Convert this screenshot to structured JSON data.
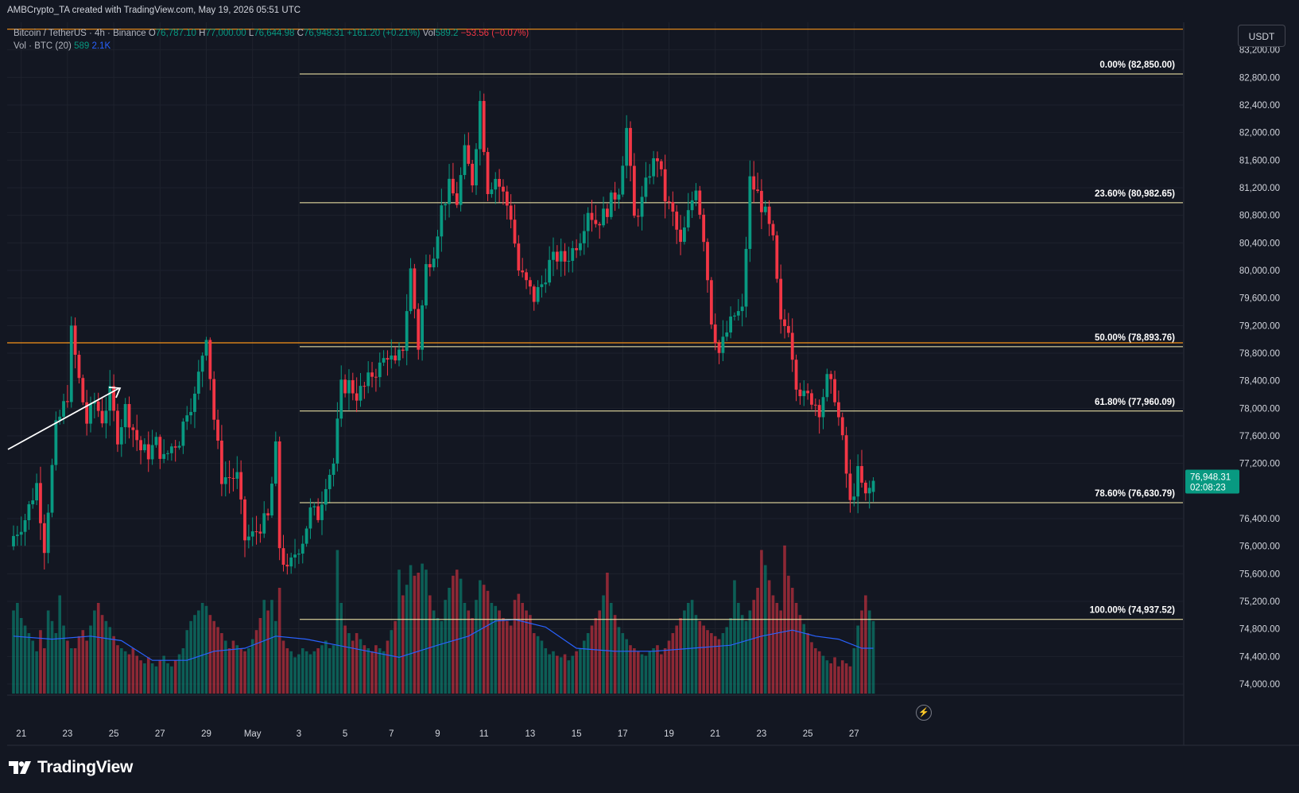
{
  "header": {
    "credit": "AMBCrypto_TA created with TradingView.com, May 19, 2026 05:51 UTC"
  },
  "legend": {
    "symbol": "Bitcoin / TetherUS · 4h · Binance",
    "o_label": "O",
    "o_value": "76,787.10",
    "h_label": "H",
    "h_value": "77,000.00",
    "l_label": "L",
    "l_value": "76,644.98",
    "c_label": "C",
    "c_value": "76,948.31",
    "change": "+161.20 (+0.21%)",
    "vol_label": "Vol",
    "vol_value": "589.2",
    "vol_change": "−53.56 (−0.07%)",
    "vol_indicator": "Vol · BTC (20)",
    "vol_current": "589",
    "vol_ma": "2.1K"
  },
  "currency_button": "USDT",
  "brand": "TradingView",
  "colors": {
    "background": "#131722",
    "up": "#089981",
    "down": "#f23645",
    "fib_line": "#fff3b0",
    "horizontal_line": "#f7931a",
    "volume_ma": "#2962ff",
    "axis_text": "#d1d4dc"
  },
  "chart_data": {
    "type": "candlestick",
    "symbol": "Bitcoin / TetherUS",
    "interval": "4h",
    "exchange": "Binance",
    "y_axis": {
      "ticks": [
        "83,200.00",
        "82,800.00",
        "82,400.00",
        "82,000.00",
        "81,600.00",
        "81,200.00",
        "80,800.00",
        "80,400.00",
        "80,000.00",
        "79,600.00",
        "79,200.00",
        "78,800.00",
        "78,400.00",
        "78,000.00",
        "77,600.00",
        "77,200.00",
        "76,400.00",
        "76,000.00",
        "75,600.00",
        "75,200.00",
        "74,800.00",
        "74,400.00",
        "74,000.00"
      ],
      "range": [
        73850,
        83600
      ]
    },
    "x_axis": {
      "ticks": [
        "21",
        "23",
        "25",
        "27",
        "29",
        "May",
        "3",
        "5",
        "7",
        "9",
        "11",
        "13",
        "15",
        "17",
        "19",
        "21",
        "23",
        "25",
        "27"
      ]
    },
    "last_price": {
      "value": "76,948.31",
      "countdown": "02:08:23"
    },
    "fib_levels": [
      {
        "label": "0.00% (82,850.00)",
        "price": 82850.0
      },
      {
        "label": "23.60% (80,982.65)",
        "price": 80982.65
      },
      {
        "label": "50.00% (78,893.76)",
        "price": 78893.76
      },
      {
        "label": "61.80% (77,960.09)",
        "price": 77960.09
      },
      {
        "label": "78.60% (76,630.79)",
        "price": 76630.79
      },
      {
        "label": "100.00% (74,937.52)",
        "price": 74937.52
      }
    ],
    "horizontal_lines": [
      83500,
      78950
    ],
    "candles": {
      "first_candle_date": "Apr 21",
      "close_path": [
        [
          0,
          76150
        ],
        [
          3,
          76400
        ],
        [
          6,
          76900
        ],
        [
          8,
          76000
        ],
        [
          11,
          77700
        ],
        [
          14,
          78200
        ],
        [
          15,
          79100
        ],
        [
          17,
          78400
        ],
        [
          19,
          77800
        ],
        [
          21,
          78100
        ],
        [
          23,
          77850
        ],
        [
          25,
          78200
        ],
        [
          27,
          77600
        ],
        [
          29,
          78000
        ],
        [
          31,
          77700
        ],
        [
          33,
          77400
        ],
        [
          35,
          77350
        ],
        [
          37,
          77500
        ],
        [
          39,
          77250
        ],
        [
          41,
          77450
        ],
        [
          43,
          77550
        ],
        [
          45,
          78000
        ],
        [
          47,
          78150
        ],
        [
          49,
          78800
        ],
        [
          50,
          79100
        ],
        [
          52,
          77850
        ],
        [
          54,
          77000
        ],
        [
          56,
          77000
        ],
        [
          58,
          77000
        ],
        [
          60,
          76100
        ],
        [
          62,
          76150
        ],
        [
          64,
          76300
        ],
        [
          66,
          76400
        ],
        [
          68,
          77400
        ],
        [
          69,
          76000
        ],
        [
          71,
          75600
        ],
        [
          73,
          75900
        ],
        [
          75,
          76100
        ],
        [
          77,
          76500
        ],
        [
          79,
          76450
        ],
        [
          81,
          76950
        ],
        [
          83,
          77200
        ],
        [
          85,
          78300
        ],
        [
          87,
          78350
        ],
        [
          89,
          78200
        ],
        [
          91,
          78300
        ],
        [
          93,
          78500
        ],
        [
          95,
          78600
        ],
        [
          97,
          78800
        ],
        [
          99,
          78600
        ],
        [
          101,
          78900
        ],
        [
          103,
          80000
        ],
        [
          105,
          78900
        ],
        [
          107,
          80050
        ],
        [
          109,
          80300
        ],
        [
          111,
          80900
        ],
        [
          113,
          81200
        ],
        [
          115,
          81000
        ],
        [
          117,
          81700
        ],
        [
          119,
          81300
        ],
        [
          121,
          82450
        ],
        [
          123,
          81200
        ],
        [
          125,
          81350
        ],
        [
          127,
          81100
        ],
        [
          129,
          80800
        ],
        [
          131,
          80000
        ],
        [
          133,
          79800
        ],
        [
          135,
          79600
        ],
        [
          137,
          79800
        ],
        [
          139,
          80100
        ],
        [
          141,
          80200
        ],
        [
          143,
          80150
        ],
        [
          145,
          80300
        ],
        [
          147,
          80500
        ],
        [
          149,
          80900
        ],
        [
          151,
          80700
        ],
        [
          153,
          80800
        ],
        [
          155,
          81000
        ],
        [
          157,
          81200
        ],
        [
          159,
          82050
        ],
        [
          161,
          80750
        ],
        [
          163,
          81000
        ],
        [
          165,
          81450
        ],
        [
          167,
          81650
        ],
        [
          169,
          81050
        ],
        [
          171,
          80800
        ],
        [
          173,
          80350
        ],
        [
          175,
          80800
        ],
        [
          177,
          81250
        ],
        [
          179,
          80500
        ],
        [
          181,
          79300
        ],
        [
          183,
          78800
        ],
        [
          185,
          79100
        ],
        [
          187,
          79350
        ],
        [
          189,
          79400
        ],
        [
          191,
          81300
        ],
        [
          193,
          81100
        ],
        [
          195,
          80800
        ],
        [
          197,
          80400
        ],
        [
          199,
          79200
        ],
        [
          201,
          79200
        ],
        [
          203,
          78400
        ],
        [
          205,
          78150
        ],
        [
          207,
          78150
        ],
        [
          209,
          78000
        ],
        [
          211,
          78400
        ],
        [
          213,
          78200
        ],
        [
          215,
          77500
        ],
        [
          217,
          76600
        ],
        [
          219,
          77050
        ],
        [
          221,
          76700
        ],
        [
          223,
          76950
        ]
      ]
    },
    "volume": {
      "ma_period": 20,
      "ma_path": [
        [
          0,
          0.38
        ],
        [
          10,
          0.36
        ],
        [
          20,
          0.38
        ],
        [
          28,
          0.35
        ],
        [
          36,
          0.22
        ],
        [
          45,
          0.22
        ],
        [
          52,
          0.28
        ],
        [
          60,
          0.3
        ],
        [
          68,
          0.38
        ],
        [
          76,
          0.36
        ],
        [
          84,
          0.32
        ],
        [
          92,
          0.28
        ],
        [
          100,
          0.24
        ],
        [
          110,
          0.32
        ],
        [
          118,
          0.38
        ],
        [
          125,
          0.48
        ],
        [
          130,
          0.49
        ],
        [
          138,
          0.44
        ],
        [
          146,
          0.3
        ],
        [
          156,
          0.28
        ],
        [
          166,
          0.28
        ],
        [
          176,
          0.3
        ],
        [
          186,
          0.32
        ],
        [
          194,
          0.38
        ],
        [
          202,
          0.42
        ],
        [
          208,
          0.38
        ],
        [
          214,
          0.36
        ],
        [
          220,
          0.3
        ],
        [
          223,
          0.3
        ]
      ],
      "heights": [
        0.55,
        0.6,
        0.5,
        0.45,
        0.4,
        0.35,
        0.28,
        0.42,
        0.3,
        0.55,
        0.48,
        0.4,
        0.65,
        0.45,
        0.35,
        0.3,
        0.3,
        0.38,
        0.42,
        0.35,
        0.45,
        0.55,
        0.6,
        0.52,
        0.48,
        0.44,
        0.38,
        0.32,
        0.3,
        0.28,
        0.26,
        0.3,
        0.25,
        0.22,
        0.2,
        0.24,
        0.2,
        0.18,
        0.22,
        0.25,
        0.2,
        0.18,
        0.22,
        0.26,
        0.3,
        0.42,
        0.48,
        0.52,
        0.55,
        0.6,
        0.58,
        0.52,
        0.48,
        0.44,
        0.4,
        0.35,
        0.3,
        0.35,
        0.32,
        0.3,
        0.28,
        0.3,
        0.36,
        0.42,
        0.5,
        0.62,
        0.55,
        0.62,
        0.48,
        0.7,
        0.35,
        0.3,
        0.28,
        0.24,
        0.26,
        0.3,
        0.28,
        0.26,
        0.28,
        0.3,
        0.32,
        0.35,
        0.3,
        0.32,
        0.95,
        0.6,
        0.45,
        0.4,
        0.35,
        0.4,
        0.36,
        0.32,
        0.3,
        0.28,
        0.32,
        0.3,
        0.28,
        0.35,
        0.42,
        0.48,
        0.82,
        0.65,
        0.72,
        0.85,
        0.78,
        0.8,
        0.86,
        0.82,
        0.65,
        0.55,
        0.5,
        0.48,
        0.62,
        0.7,
        0.78,
        0.82,
        0.76,
        0.6,
        0.55,
        0.5,
        0.62,
        0.75,
        0.72,
        0.68,
        0.6,
        0.58,
        0.55,
        0.5,
        0.48,
        0.45,
        0.62,
        0.66,
        0.6,
        0.55,
        0.52,
        0.4,
        0.38,
        0.35,
        0.3,
        0.26,
        0.28,
        0.25,
        0.24,
        0.26,
        0.22,
        0.25,
        0.28,
        0.3,
        0.35,
        0.4,
        0.45,
        0.5,
        0.55,
        0.65,
        0.8,
        0.6,
        0.52,
        0.44,
        0.4,
        0.36,
        0.32,
        0.3,
        0.28,
        0.26,
        0.25,
        0.28,
        0.3,
        0.32,
        0.26,
        0.3,
        0.35,
        0.4,
        0.45,
        0.5,
        0.55,
        0.6,
        0.62,
        0.52,
        0.48,
        0.45,
        0.42,
        0.4,
        0.38,
        0.36,
        0.4,
        0.44,
        0.5,
        0.75,
        0.6,
        0.52,
        0.48,
        0.55,
        0.62,
        0.7,
        0.95,
        0.85,
        0.75,
        0.65,
        0.6,
        0.55,
        0.98,
        0.78,
        0.7,
        0.6,
        0.52,
        0.46,
        0.4,
        0.34,
        0.3,
        0.28,
        0.25,
        0.22,
        0.2,
        0.24,
        0.18,
        0.22,
        0.2,
        0.18,
        0.3,
        0.45,
        0.55,
        0.65,
        0.55,
        0.48,
        0.4,
        0.35,
        0.3,
        0.25,
        0.2
      ]
    }
  }
}
